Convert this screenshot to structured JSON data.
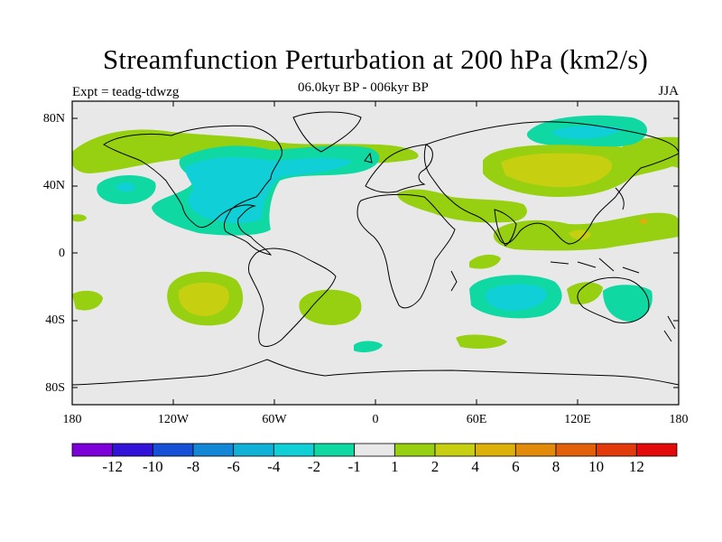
{
  "title": "Streamfunction Perturbation at 200 hPa (km2/s)",
  "subtitle": "06.0kyr BP - 006kyr BP",
  "experiment": "Expt = teadg-tdwzg",
  "season": "JJA",
  "map": {
    "lat_labels": [
      "80N",
      "40N",
      "0",
      "40S",
      "80S"
    ],
    "lon_labels": [
      "180",
      "120W",
      "60W",
      "0",
      "60E",
      "120E",
      "180"
    ],
    "lat_range": [
      -90,
      90
    ],
    "lon_range": [
      -180,
      180
    ]
  },
  "colorbar": {
    "labels": [
      "-12",
      "-10",
      "-8",
      "-6",
      "-4",
      "-2",
      "-1",
      "1",
      "2",
      "4",
      "6",
      "8",
      "10",
      "12"
    ],
    "colors": [
      "#7d00d8",
      "#3413d8",
      "#1650d6",
      "#1187d6",
      "#10b1d6",
      "#10cfd6",
      "#10d8a2",
      "#e8e8e8",
      "#96d010",
      "#c6d010",
      "#dcb20a",
      "#e28a0a",
      "#e2600a",
      "#e23a0a",
      "#e20a0a"
    ]
  },
  "chart_data": {
    "type": "contour-map",
    "field": "200 hPa streamfunction perturbation",
    "units": "km2/s",
    "levels": [
      -12,
      -10,
      -8,
      -6,
      -4,
      -2,
      -1,
      1,
      2,
      4,
      6,
      8,
      10,
      12
    ],
    "features": [
      {
        "region": "North Atlantic / North America",
        "sign": "negative",
        "min_level": -4
      },
      {
        "region": "Arctic north of Siberia",
        "sign": "negative",
        "min_level": -4
      },
      {
        "region": "Central Asia",
        "sign": "positive",
        "max_level": 4
      },
      {
        "region": "East Pacific subtropics (south)",
        "sign": "positive",
        "max_level": 4
      },
      {
        "region": "South Indian Ocean",
        "sign": "negative",
        "min_level": -4
      },
      {
        "region": "Eastern Australia",
        "sign": "negative",
        "min_level": -2
      },
      {
        "region": "South Atlantic",
        "sign": "positive",
        "max_level": 2
      },
      {
        "region": "West Pacific tropics",
        "sign": "positive",
        "max_level": 4
      },
      {
        "region": "Central Pacific north",
        "sign": "negative",
        "min_level": -2
      },
      {
        "region": "Eastern Pacific / Central America",
        "sign": "negative",
        "min_level": -2
      }
    ]
  }
}
